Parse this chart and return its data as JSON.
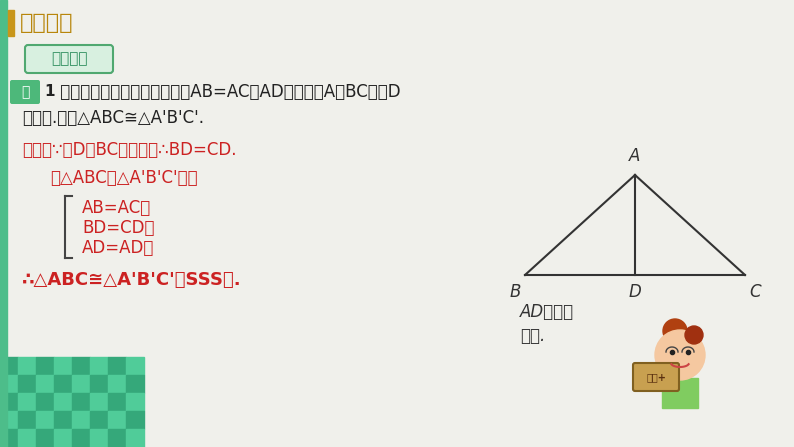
{
  "bg_color": "#f0f0eb",
  "title": "新课讲解",
  "title_color": "#b8860b",
  "title_bar_color": "#c8961a",
  "badge_text": "典例分析",
  "badge_bg": "#d8f0e0",
  "badge_border": "#50a870",
  "badge_text_color": "#309060",
  "example_box_bg": "#4db87a",
  "problem_color": "#222222",
  "proof_color": "#cc2222",
  "bracket_color": "#444444",
  "tri_color": "#333333",
  "left_bar_color": "#4dbd8a",
  "corner_colors": [
    "#35a87a",
    "#50cc99"
  ],
  "annot_color": "#333333",
  "line1a": "例",
  "line1b": "1",
  "line1c": " 在如图所示的三角形钢架中，AB=AC，AD是连接点A与BC中点D",
  "line2": "的支架.求证△ABC≅△A'B'C'.",
  "proof1": "证明：∵点D是BC的中点，∴BD=CD.",
  "proof2": "在△ABC和△A'B'C'中，",
  "items": [
    "AB=AC，",
    "BD=CD，",
    "AD=AD，"
  ],
  "conclusion": "∴△ABC≅△A'B'C'（SSS）.",
  "annot1": "AD称为公",
  "annot2": "共边."
}
